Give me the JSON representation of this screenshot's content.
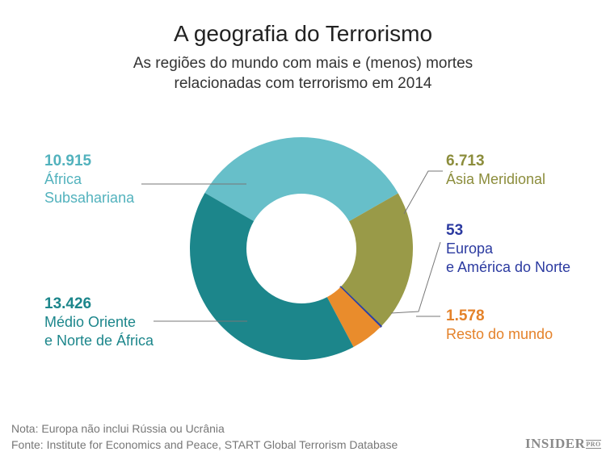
{
  "title": "A geografia do Terrorismo",
  "subtitle_line1": "As regiões do mundo com mais e (menos) mortes",
  "subtitle_line2": "relacionadas com terrorismo em 2014",
  "chart_data": {
    "type": "pie",
    "donut": true,
    "title": "A geografia do Terrorismo",
    "series": [
      {
        "label_num": "10.915",
        "label": [
          "África",
          "Subsahariana"
        ],
        "value": 10915,
        "color": "#67bfc9",
        "text_color": "#52b2bd"
      },
      {
        "label_num": "6.713",
        "label": [
          "Ásia Meridional"
        ],
        "value": 6713,
        "color": "#999a48",
        "text_color": "#8c8d3c"
      },
      {
        "label_num": "53",
        "label": [
          "Europa",
          "e América do Norte"
        ],
        "value": 53,
        "color": "#2a3faa",
        "text_color": "#2b3aa0"
      },
      {
        "label_num": "1.578",
        "label": [
          "Resto do mundo"
        ],
        "value": 1578,
        "color": "#e98c2c",
        "text_color": "#e4822a"
      },
      {
        "label_num": "13.426",
        "label": [
          "Médio Oriente",
          "e Norte de África"
        ],
        "value": 13426,
        "color": "#1c868b",
        "text_color": "#1c868b"
      }
    ]
  },
  "note": "Nota: Europa não inclui Rússia ou Ucrânia",
  "source": "Fonte: Institute for Economics and Peace, START Global Terrorism Database",
  "logo": {
    "main": "INSIDER",
    "sup": "PRO"
  }
}
